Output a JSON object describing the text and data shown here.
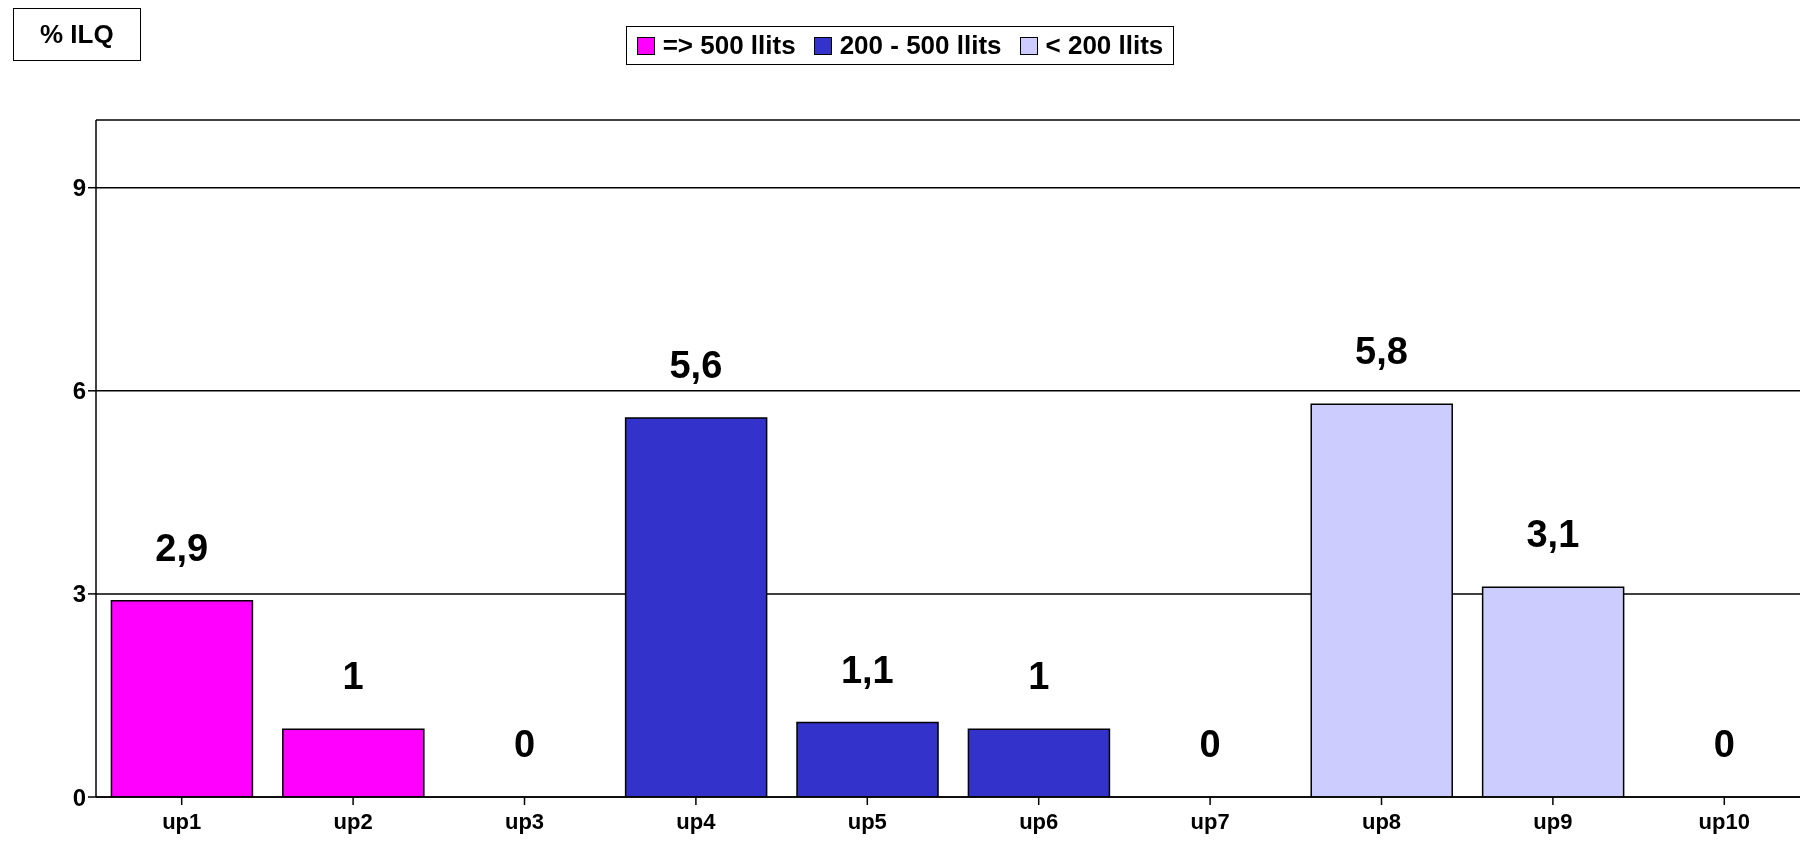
{
  "chart_data": {
    "type": "bar",
    "ylabel": "% ILQ",
    "categories": [
      "up1",
      "up2",
      "up3",
      "up4",
      "up5",
      "up6",
      "up7",
      "up8",
      "up9",
      "up10"
    ],
    "series": [
      {
        "name": "=> 500 llits",
        "color": "#ff00ff",
        "values": [
          2.9,
          1,
          0,
          null,
          null,
          null,
          null,
          null,
          null,
          null
        ],
        "value_labels": [
          "2,9",
          "1",
          "0",
          null,
          null,
          null,
          null,
          null,
          null,
          null
        ]
      },
      {
        "name": "200 - 500 llits",
        "color": "#3333cc",
        "values": [
          null,
          null,
          null,
          5.6,
          1.1,
          1,
          0,
          null,
          null,
          null
        ],
        "value_labels": [
          null,
          null,
          null,
          "5,6",
          "1,1",
          "1",
          "0",
          null,
          null,
          null
        ]
      },
      {
        "name": "< 200 llits",
        "color": "#ccccff",
        "values": [
          null,
          null,
          null,
          null,
          null,
          null,
          null,
          5.8,
          3.1,
          0
        ],
        "value_labels": [
          null,
          null,
          null,
          null,
          null,
          null,
          null,
          "5,8",
          "3,1",
          "0"
        ]
      }
    ],
    "stacked": true,
    "ylim": [
      0,
      10
    ],
    "yticks": [
      0,
      3,
      6,
      9
    ],
    "grid": "y",
    "legend": "top"
  }
}
